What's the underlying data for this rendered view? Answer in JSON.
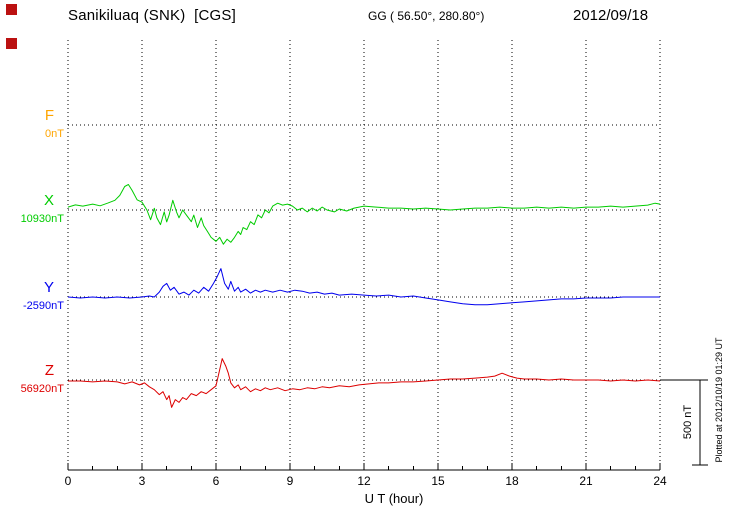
{
  "header": {
    "station": "Sanikiluaq (SNK)  [CGS]",
    "coords": "GG ( 56.50°, 280.80°)",
    "date": "2012/09/18"
  },
  "side": {
    "plotted_at": "Plotted at 2012/10/19 01:29 UT"
  },
  "chart_data": {
    "type": "line",
    "title": "Sanikiluaq (SNK) [CGS] magnetogram 2012/09/18",
    "xlabel": "U T (hour)",
    "xlim": [
      0,
      24
    ],
    "xticks": [
      0,
      3,
      6,
      9,
      12,
      15,
      18,
      21,
      24
    ],
    "minor_tick_step": 1,
    "grid": "dotted",
    "scale_bar": {
      "label": "500 nT",
      "value_nT": 500
    },
    "series": [
      {
        "name": "F",
        "color": "#FFA500",
        "baseline_label": "0nT",
        "baseline_nT": 0,
        "points": []
      },
      {
        "name": "X",
        "color": "#00CC00",
        "baseline_label": "10930nT",
        "baseline_nT": 10930,
        "points": [
          [
            0,
            17
          ],
          [
            0.3,
            30
          ],
          [
            0.6,
            23
          ],
          [
            1,
            35
          ],
          [
            1.3,
            25
          ],
          [
            1.6,
            40
          ],
          [
            1.9,
            57
          ],
          [
            2.1,
            86
          ],
          [
            2.3,
            138
          ],
          [
            2.45,
            150
          ],
          [
            2.6,
            115
          ],
          [
            2.8,
            60
          ],
          [
            3,
            46
          ],
          [
            3.2,
            0
          ],
          [
            3.35,
            -57
          ],
          [
            3.5,
            10
          ],
          [
            3.6,
            -46
          ],
          [
            3.75,
            -86
          ],
          [
            3.9,
            -11
          ],
          [
            4,
            -70
          ],
          [
            4.1,
            -30
          ],
          [
            4.25,
            57
          ],
          [
            4.4,
            -11
          ],
          [
            4.5,
            -46
          ],
          [
            4.65,
            0
          ],
          [
            4.8,
            -30
          ],
          [
            5,
            -69
          ],
          [
            5.1,
            -30
          ],
          [
            5.25,
            -103
          ],
          [
            5.4,
            -46
          ],
          [
            5.5,
            -92
          ],
          [
            5.65,
            -126
          ],
          [
            5.8,
            -161
          ],
          [
            6,
            -184
          ],
          [
            6.15,
            -161
          ],
          [
            6.3,
            -201
          ],
          [
            6.45,
            -172
          ],
          [
            6.6,
            -190
          ],
          [
            6.75,
            -161
          ],
          [
            6.9,
            -126
          ],
          [
            7,
            -144
          ],
          [
            7.1,
            -103
          ],
          [
            7.25,
            -115
          ],
          [
            7.4,
            -69
          ],
          [
            7.55,
            -86
          ],
          [
            7.7,
            -29
          ],
          [
            7.85,
            -46
          ],
          [
            8,
            0
          ],
          [
            8.15,
            -17
          ],
          [
            8.3,
            23
          ],
          [
            8.5,
            40
          ],
          [
            8.7,
            29
          ],
          [
            8.9,
            35
          ],
          [
            9.1,
            23
          ],
          [
            9.3,
            0
          ],
          [
            9.5,
            11
          ],
          [
            9.7,
            -11
          ],
          [
            9.9,
            11
          ],
          [
            10.1,
            -6
          ],
          [
            10.3,
            17
          ],
          [
            10.5,
            0
          ],
          [
            10.8,
            -11
          ],
          [
            11,
            6
          ],
          [
            11.3,
            -6
          ],
          [
            11.6,
            11
          ],
          [
            12,
            23
          ],
          [
            12.5,
            17
          ],
          [
            13,
            11
          ],
          [
            13.5,
            11
          ],
          [
            14,
            6
          ],
          [
            14.5,
            11
          ],
          [
            15,
            6
          ],
          [
            15.5,
            0
          ],
          [
            16,
            6
          ],
          [
            16.5,
            11
          ],
          [
            17,
            11
          ],
          [
            17.5,
            17
          ],
          [
            18,
            11
          ],
          [
            18.5,
            11
          ],
          [
            19,
            17
          ],
          [
            19.5,
            11
          ],
          [
            20,
            17
          ],
          [
            20.5,
            11
          ],
          [
            21,
            17
          ],
          [
            21.5,
            17
          ],
          [
            22,
            23
          ],
          [
            22.5,
            17
          ],
          [
            23,
            23
          ],
          [
            23.5,
            29
          ],
          [
            23.8,
            40
          ],
          [
            24,
            35
          ]
        ]
      },
      {
        "name": "Y",
        "color": "#0000EE",
        "baseline_label": "-2590nT",
        "baseline_nT": -2590,
        "points": [
          [
            0,
            0
          ],
          [
            0.5,
            -6
          ],
          [
            1,
            0
          ],
          [
            1.5,
            -6
          ],
          [
            2,
            0
          ],
          [
            2.5,
            -6
          ],
          [
            3,
            0
          ],
          [
            3.3,
            6
          ],
          [
            3.5,
            0
          ],
          [
            3.7,
            29
          ],
          [
            3.85,
            63
          ],
          [
            4,
            80
          ],
          [
            4.15,
            40
          ],
          [
            4.3,
            57
          ],
          [
            4.5,
            17
          ],
          [
            4.7,
            29
          ],
          [
            4.9,
            11
          ],
          [
            5.1,
            40
          ],
          [
            5.3,
            23
          ],
          [
            5.5,
            57
          ],
          [
            5.7,
            34
          ],
          [
            5.9,
            80
          ],
          [
            6.05,
            120
          ],
          [
            6.2,
            167
          ],
          [
            6.35,
            80
          ],
          [
            6.5,
            46
          ],
          [
            6.6,
            92
          ],
          [
            6.75,
            34
          ],
          [
            6.9,
            57
          ],
          [
            7,
            29
          ],
          [
            7.2,
            46
          ],
          [
            7.4,
            23
          ],
          [
            7.6,
            40
          ],
          [
            7.8,
            29
          ],
          [
            8,
            40
          ],
          [
            8.3,
            29
          ],
          [
            8.6,
            40
          ],
          [
            8.9,
            29
          ],
          [
            9.2,
            40
          ],
          [
            9.5,
            34
          ],
          [
            9.8,
            23
          ],
          [
            10.1,
            29
          ],
          [
            10.4,
            17
          ],
          [
            10.7,
            23
          ],
          [
            11,
            11
          ],
          [
            11.5,
            17
          ],
          [
            12,
            11
          ],
          [
            12.5,
            6
          ],
          [
            13,
            11
          ],
          [
            13.5,
            0
          ],
          [
            14,
            6
          ],
          [
            14.5,
            -6
          ],
          [
            15,
            -17
          ],
          [
            15.5,
            -29
          ],
          [
            16,
            -40
          ],
          [
            16.5,
            -46
          ],
          [
            17,
            -46
          ],
          [
            17.5,
            -40
          ],
          [
            18,
            -34
          ],
          [
            18.5,
            -29
          ],
          [
            19,
            -23
          ],
          [
            19.5,
            -17
          ],
          [
            20,
            -11
          ],
          [
            20.5,
            -11
          ],
          [
            21,
            -6
          ],
          [
            21.5,
            -6
          ],
          [
            22,
            -6
          ],
          [
            22.5,
            0
          ],
          [
            23,
            0
          ],
          [
            23.5,
            0
          ],
          [
            24,
            0
          ]
        ]
      },
      {
        "name": "Z",
        "color": "#DD0000",
        "baseline_label": "56920nT",
        "baseline_nT": 56920,
        "points": [
          [
            0,
            -6
          ],
          [
            0.5,
            -6
          ],
          [
            1,
            -11
          ],
          [
            1.5,
            -6
          ],
          [
            2,
            -11
          ],
          [
            2.3,
            -23
          ],
          [
            2.6,
            -11
          ],
          [
            2.9,
            -29
          ],
          [
            3.1,
            -17
          ],
          [
            3.3,
            -40
          ],
          [
            3.5,
            -57
          ],
          [
            3.7,
            -86
          ],
          [
            3.85,
            -69
          ],
          [
            4,
            -115
          ],
          [
            4.1,
            -92
          ],
          [
            4.2,
            -161
          ],
          [
            4.35,
            -115
          ],
          [
            4.5,
            -132
          ],
          [
            4.65,
            -103
          ],
          [
            4.8,
            -115
          ],
          [
            5,
            -80
          ],
          [
            5.2,
            -92
          ],
          [
            5.4,
            -69
          ],
          [
            5.6,
            -80
          ],
          [
            5.8,
            -57
          ],
          [
            6,
            -34
          ],
          [
            6.1,
            30
          ],
          [
            6.25,
            126
          ],
          [
            6.4,
            80
          ],
          [
            6.5,
            40
          ],
          [
            6.6,
            -17
          ],
          [
            6.75,
            -46
          ],
          [
            6.9,
            -29
          ],
          [
            7,
            -57
          ],
          [
            7.2,
            -40
          ],
          [
            7.4,
            -69
          ],
          [
            7.6,
            -52
          ],
          [
            7.8,
            -63
          ],
          [
            8,
            -46
          ],
          [
            8.2,
            -57
          ],
          [
            8.5,
            -46
          ],
          [
            8.8,
            -63
          ],
          [
            9.1,
            -52
          ],
          [
            9.4,
            -57
          ],
          [
            9.7,
            -46
          ],
          [
            10,
            -52
          ],
          [
            10.3,
            -40
          ],
          [
            10.6,
            -46
          ],
          [
            11,
            -34
          ],
          [
            11.4,
            -40
          ],
          [
            11.8,
            -29
          ],
          [
            12.2,
            -23
          ],
          [
            12.6,
            -17
          ],
          [
            13,
            -17
          ],
          [
            13.5,
            -11
          ],
          [
            14,
            -11
          ],
          [
            14.5,
            -6
          ],
          [
            15,
            0
          ],
          [
            15.5,
            6
          ],
          [
            16,
            6
          ],
          [
            16.5,
            11
          ],
          [
            17,
            17
          ],
          [
            17.3,
            23
          ],
          [
            17.6,
            40
          ],
          [
            17.9,
            23
          ],
          [
            18.2,
            11
          ],
          [
            18.5,
            6
          ],
          [
            19,
            6
          ],
          [
            19.5,
            0
          ],
          [
            20,
            6
          ],
          [
            20.5,
            0
          ],
          [
            21,
            0
          ],
          [
            21.5,
            0
          ],
          [
            22,
            -6
          ],
          [
            22.5,
            0
          ],
          [
            23,
            -6
          ],
          [
            23.5,
            0
          ],
          [
            24,
            -6
          ]
        ]
      }
    ]
  }
}
